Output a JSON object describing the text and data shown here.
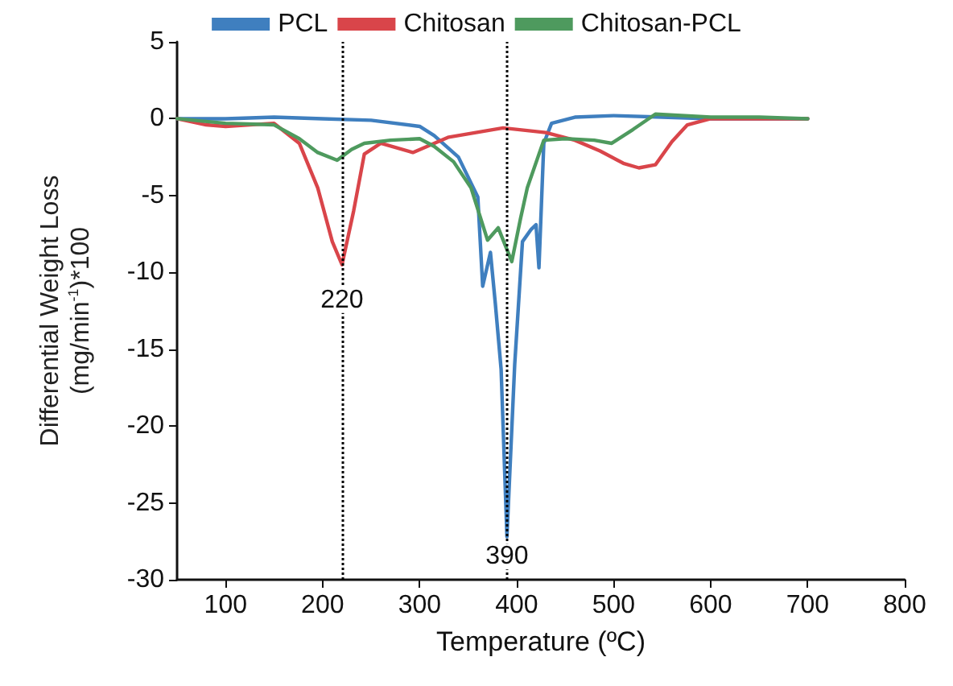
{
  "chart_data": {
    "type": "line",
    "xlabel": "Temperature (ºC)",
    "ylabel": "Differential Weight Loss\n(mg/min$^{-1}$)*100",
    "xlim": [
      50,
      800
    ],
    "xticks": [
      100,
      200,
      300,
      400,
      500,
      600,
      700,
      800
    ],
    "ylim": [
      -30,
      5
    ],
    "yticks": [
      -30,
      -25,
      -20,
      -15,
      -10,
      -5,
      0,
      5
    ],
    "grid": false,
    "legend": "top",
    "marker": "none",
    "line_style": "solid",
    "series": [
      {
        "name": "PCL",
        "color": "#3f7fbf",
        "x": [
          50,
          100,
          150,
          200,
          250,
          300,
          315,
          340,
          360,
          365,
          373,
          378,
          384,
          390,
          398,
          406,
          415,
          420,
          423,
          428,
          436,
          460,
          500,
          550,
          600,
          650,
          700
        ],
        "values": [
          0,
          0,
          0.1,
          0,
          -0.1,
          -0.5,
          -1.1,
          -2.5,
          -5.1,
          -10.9,
          -8.7,
          -12,
          -16.3,
          -27.2,
          -16,
          -8,
          -7.2,
          -6.9,
          -9.7,
          -1.6,
          -0.3,
          0.1,
          0.2,
          0.1,
          0,
          0,
          0
        ]
      },
      {
        "name": "Chitosan",
        "color": "#d9454a",
        "x": [
          50,
          80,
          100,
          150,
          176,
          195,
          210,
          220,
          232,
          243,
          260,
          293,
          330,
          386,
          430,
          460,
          486,
          510,
          526,
          543,
          560,
          576,
          600,
          650,
          700
        ],
        "values": [
          0,
          -0.4,
          -0.5,
          -0.3,
          -1.6,
          -4.5,
          -8,
          -9.5,
          -6,
          -2.3,
          -1.6,
          -2.2,
          -1.2,
          -0.6,
          -0.9,
          -1.4,
          -2.1,
          -2.9,
          -3.2,
          -3,
          -1.5,
          -0.4,
          0,
          0,
          0
        ]
      },
      {
        "name": "Chitosan-PCL",
        "color": "#4e9a5e",
        "x": [
          50,
          100,
          150,
          176,
          195,
          215,
          230,
          243,
          270,
          300,
          315,
          335,
          353,
          370,
          381,
          395,
          404,
          411,
          428,
          450,
          480,
          498,
          520,
          543,
          600,
          650,
          700
        ],
        "values": [
          0,
          -0.3,
          -0.4,
          -1.3,
          -2.2,
          -2.7,
          -2,
          -1.6,
          -1.4,
          -1.3,
          -1.8,
          -2.8,
          -4.5,
          -7.9,
          -7.1,
          -9.3,
          -6.5,
          -4.5,
          -1.4,
          -1.3,
          -1.4,
          -1.6,
          -0.7,
          0.3,
          0.1,
          0.1,
          0
        ]
      }
    ],
    "ref_lines": [
      {
        "axis": "x",
        "value": 220,
        "color": "#000000",
        "line_style": "dotted"
      },
      {
        "axis": "x",
        "value": 390,
        "color": "#000000",
        "line_style": "dotted"
      }
    ],
    "annotations": [
      {
        "text": "220",
        "x": 220,
        "y": -11.8
      },
      {
        "text": "390",
        "x": 390,
        "y": -28.5
      }
    ]
  }
}
